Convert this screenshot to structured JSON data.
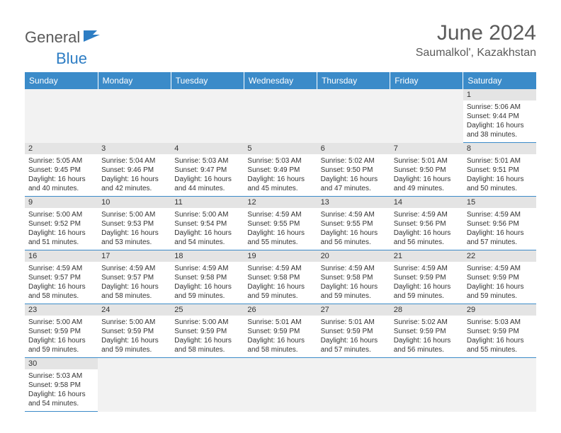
{
  "logo": {
    "part1": "General",
    "part2": "Blue"
  },
  "title": "June 2024",
  "location": "Saumalkol', Kazakhstan",
  "weekdays": [
    "Sunday",
    "Monday",
    "Tuesday",
    "Wednesday",
    "Thursday",
    "Friday",
    "Saturday"
  ],
  "weeks": [
    [
      null,
      null,
      null,
      null,
      null,
      null,
      {
        "n": "1",
        "r": "5:06 AM",
        "s": "9:44 PM",
        "d": "16 hours and 38 minutes."
      }
    ],
    [
      {
        "n": "2",
        "r": "5:05 AM",
        "s": "9:45 PM",
        "d": "16 hours and 40 minutes."
      },
      {
        "n": "3",
        "r": "5:04 AM",
        "s": "9:46 PM",
        "d": "16 hours and 42 minutes."
      },
      {
        "n": "4",
        "r": "5:03 AM",
        "s": "9:47 PM",
        "d": "16 hours and 44 minutes."
      },
      {
        "n": "5",
        "r": "5:03 AM",
        "s": "9:49 PM",
        "d": "16 hours and 45 minutes."
      },
      {
        "n": "6",
        "r": "5:02 AM",
        "s": "9:50 PM",
        "d": "16 hours and 47 minutes."
      },
      {
        "n": "7",
        "r": "5:01 AM",
        "s": "9:50 PM",
        "d": "16 hours and 49 minutes."
      },
      {
        "n": "8",
        "r": "5:01 AM",
        "s": "9:51 PM",
        "d": "16 hours and 50 minutes."
      }
    ],
    [
      {
        "n": "9",
        "r": "5:00 AM",
        "s": "9:52 PM",
        "d": "16 hours and 51 minutes."
      },
      {
        "n": "10",
        "r": "5:00 AM",
        "s": "9:53 PM",
        "d": "16 hours and 53 minutes."
      },
      {
        "n": "11",
        "r": "5:00 AM",
        "s": "9:54 PM",
        "d": "16 hours and 54 minutes."
      },
      {
        "n": "12",
        "r": "4:59 AM",
        "s": "9:55 PM",
        "d": "16 hours and 55 minutes."
      },
      {
        "n": "13",
        "r": "4:59 AM",
        "s": "9:55 PM",
        "d": "16 hours and 56 minutes."
      },
      {
        "n": "14",
        "r": "4:59 AM",
        "s": "9:56 PM",
        "d": "16 hours and 56 minutes."
      },
      {
        "n": "15",
        "r": "4:59 AM",
        "s": "9:56 PM",
        "d": "16 hours and 57 minutes."
      }
    ],
    [
      {
        "n": "16",
        "r": "4:59 AM",
        "s": "9:57 PM",
        "d": "16 hours and 58 minutes."
      },
      {
        "n": "17",
        "r": "4:59 AM",
        "s": "9:57 PM",
        "d": "16 hours and 58 minutes."
      },
      {
        "n": "18",
        "r": "4:59 AM",
        "s": "9:58 PM",
        "d": "16 hours and 59 minutes."
      },
      {
        "n": "19",
        "r": "4:59 AM",
        "s": "9:58 PM",
        "d": "16 hours and 59 minutes."
      },
      {
        "n": "20",
        "r": "4:59 AM",
        "s": "9:58 PM",
        "d": "16 hours and 59 minutes."
      },
      {
        "n": "21",
        "r": "4:59 AM",
        "s": "9:59 PM",
        "d": "16 hours and 59 minutes."
      },
      {
        "n": "22",
        "r": "4:59 AM",
        "s": "9:59 PM",
        "d": "16 hours and 59 minutes."
      }
    ],
    [
      {
        "n": "23",
        "r": "5:00 AM",
        "s": "9:59 PM",
        "d": "16 hours and 59 minutes."
      },
      {
        "n": "24",
        "r": "5:00 AM",
        "s": "9:59 PM",
        "d": "16 hours and 59 minutes."
      },
      {
        "n": "25",
        "r": "5:00 AM",
        "s": "9:59 PM",
        "d": "16 hours and 58 minutes."
      },
      {
        "n": "26",
        "r": "5:01 AM",
        "s": "9:59 PM",
        "d": "16 hours and 58 minutes."
      },
      {
        "n": "27",
        "r": "5:01 AM",
        "s": "9:59 PM",
        "d": "16 hours and 57 minutes."
      },
      {
        "n": "28",
        "r": "5:02 AM",
        "s": "9:59 PM",
        "d": "16 hours and 56 minutes."
      },
      {
        "n": "29",
        "r": "5:03 AM",
        "s": "9:59 PM",
        "d": "16 hours and 55 minutes."
      }
    ],
    [
      {
        "n": "30",
        "r": "5:03 AM",
        "s": "9:58 PM",
        "d": "16 hours and 54 minutes."
      },
      null,
      null,
      null,
      null,
      null,
      null
    ]
  ],
  "labels": {
    "sunrise": "Sunrise: ",
    "sunset": "Sunset: ",
    "daylight": "Daylight: "
  },
  "colors": {
    "header_bg": "#3b8bc9",
    "daynum_bg": "#e4e4e4",
    "text": "#333333",
    "title": "#5a5a5a"
  }
}
